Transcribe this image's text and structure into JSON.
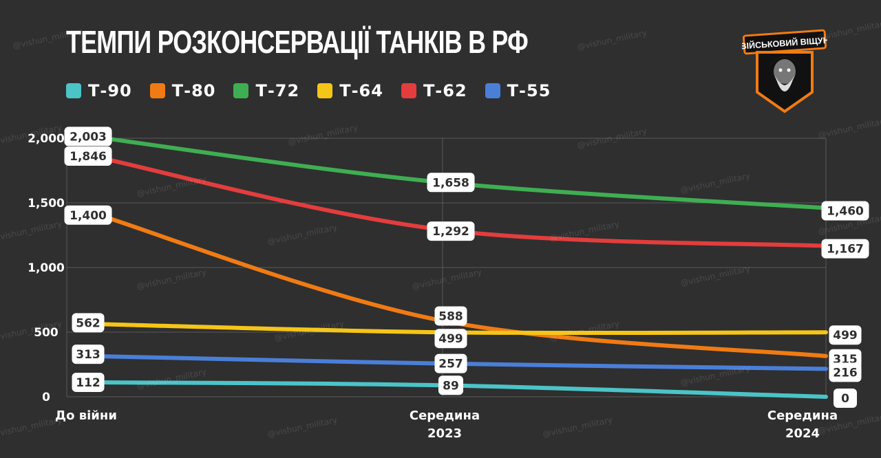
{
  "title": "ТЕМПИ РОЗКОНСЕРВАЦІЇ ТАНКІВ В РФ",
  "logo": {
    "text": "ВІЙСЬКОВИЙ ВІЩУН",
    "icon": "bearded-man-emblem-icon"
  },
  "watermark": "@vishun_military",
  "colors": {
    "background": "#2f2f2f",
    "grid": "#5a5a5a"
  },
  "chart_data": {
    "type": "line",
    "categories": [
      "До війни",
      "Середина 2023",
      "Середина 2024"
    ],
    "category_lines": [
      [
        "До війни"
      ],
      [
        "Середина",
        "2023"
      ],
      [
        "Середина",
        "2024"
      ]
    ],
    "ylim": [
      0,
      2000
    ],
    "yticks": [
      0,
      500,
      1000,
      1500,
      2000
    ],
    "ytick_labels": [
      "0",
      "500",
      "1,000",
      "1,500",
      "2,000"
    ],
    "grid": true,
    "legend_position": "top-left",
    "series": [
      {
        "name": "Т-90",
        "color": "#4bc4c8",
        "values": [
          112,
          89,
          0
        ],
        "labels": [
          "112",
          "89",
          "0"
        ]
      },
      {
        "name": "Т-80",
        "color": "#f07b14",
        "values": [
          1400,
          588,
          315
        ],
        "labels": [
          "1,400",
          "588",
          "315"
        ]
      },
      {
        "name": "Т-72",
        "color": "#3fae52",
        "values": [
          2003,
          1658,
          1460
        ],
        "labels": [
          "2,003",
          "1,658",
          "1,460"
        ]
      },
      {
        "name": "Т-64",
        "color": "#f5c518",
        "values": [
          562,
          499,
          499
        ],
        "labels": [
          "562",
          "499",
          "499"
        ]
      },
      {
        "name": "Т-62",
        "color": "#e33d3d",
        "values": [
          1846,
          1292,
          1167
        ],
        "labels": [
          "1,846",
          "1,292",
          "1,167"
        ]
      },
      {
        "name": "Т-55",
        "color": "#4a7fd8",
        "values": [
          313,
          257,
          216
        ],
        "labels": [
          "313",
          "257",
          "216"
        ]
      }
    ]
  }
}
